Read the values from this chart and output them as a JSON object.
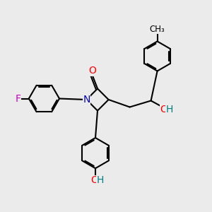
{
  "bg_color": "#ebebeb",
  "bond_color": "#000000",
  "bond_width": 1.5,
  "atom_colors": {
    "N": "#0000cc",
    "O": "#ff0000",
    "OH_H": "#008080",
    "F": "#cc00cc",
    "C": "#000000"
  },
  "font_size": 9,
  "fig_size": [
    3.0,
    3.0
  ],
  "dpi": 100,
  "xlim": [
    0,
    10
  ],
  "ylim": [
    0,
    10
  ]
}
